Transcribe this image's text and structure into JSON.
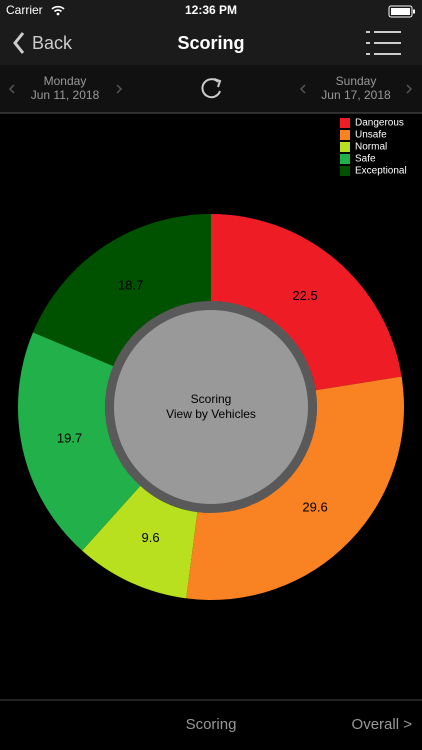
{
  "status_bar": {
    "carrier": "Carrier",
    "time": "12:36 PM"
  },
  "nav": {
    "back": "Back",
    "title": "Scoring"
  },
  "date_bar": {
    "start": {
      "weekday": "Monday",
      "date": "Jun 11, 2018"
    },
    "end": {
      "weekday": "Sunday",
      "date": "Jun 17, 2018"
    }
  },
  "chart_data": {
    "type": "donut",
    "categories": [
      "Dangerous",
      "Unsafe",
      "Normal",
      "Safe",
      "Exceptional"
    ],
    "values": [
      22.5,
      29.6,
      9.6,
      19.7,
      18.7
    ],
    "colors": [
      "#ee1c25",
      "#f98222",
      "#b8e01e",
      "#22b04b",
      "#005100"
    ],
    "center_text": [
      "Scoring",
      "View by Vehicles"
    ],
    "legend": "top-right"
  },
  "footer": {
    "tabs": [
      "Scoring",
      "Overall >"
    ]
  }
}
